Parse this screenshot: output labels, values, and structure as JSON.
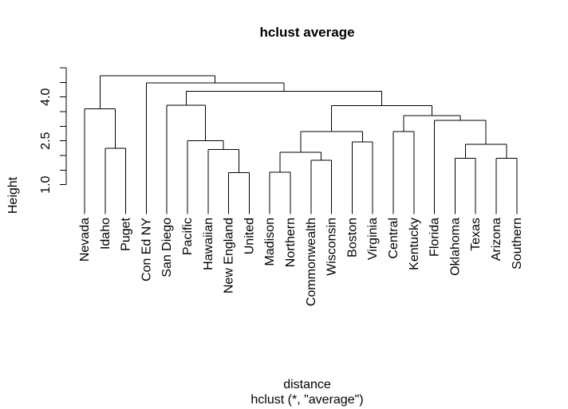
{
  "title": "hclust average",
  "y_axis": {
    "label": "Height",
    "tick_labels": [
      "1.0",
      "2.5",
      "4.0"
    ],
    "tick_values": [
      1.0,
      2.5,
      4.0
    ],
    "minor_tick_values": [
      1.0,
      1.5,
      2.0,
      2.5,
      3.0,
      3.5,
      4.0,
      4.5,
      5.0
    ]
  },
  "caption": {
    "xlabel": "distance",
    "subtitle": "hclust (*, \"average\")"
  },
  "chart_data": {
    "type": "dendrogram",
    "title": "hclust average",
    "ylabel": "Height",
    "xlabel": "distance",
    "subtitle": "hclust (*, \"average\")",
    "axis_range": [
      1.0,
      5.0
    ],
    "leaf_drop_height": 0.0,
    "leaf_order": [
      "Nevada",
      "Idaho",
      "Puget",
      "Con Ed NY",
      "San Diego",
      "Pacific",
      "Hawaiian",
      "New England",
      "United",
      "Madison",
      "Northern",
      "Commonwealth",
      "Wisconsin",
      "Boston",
      "Virginia",
      "Central",
      "Kentucky",
      "Florida",
      "Oklahoma",
      "Texas",
      "Arizona",
      "Southern"
    ],
    "merge_heights": [
      {
        "cluster": "New England + United",
        "height": 1.41
      },
      {
        "cluster": "Madison + Northern",
        "height": 1.43
      },
      {
        "cluster": "Commonwealth + Wisconsin",
        "height": 1.84
      },
      {
        "cluster": "Oklahoma + Texas",
        "height": 1.9
      },
      {
        "cluster": "Arizona + Southern",
        "height": 1.9
      },
      {
        "cluster": "(Madison,Northern) + (Commonwealth,Wisconsin)",
        "height": 2.11
      },
      {
        "cluster": "Hawaiian + (New England,United)",
        "height": 2.2
      },
      {
        "cluster": "Idaho + Puget",
        "height": 2.24
      },
      {
        "cluster": "(Oklahoma,Texas) + (Arizona,Southern)",
        "height": 2.38
      },
      {
        "cluster": "Boston + Virginia",
        "height": 2.47
      },
      {
        "cluster": "Pacific + (Hawaiian...)",
        "height": 2.5
      },
      {
        "cluster": "Central + Kentucky",
        "height": 2.82
      },
      {
        "cluster": "(Madison...Wisconsin) + (Boston,Virginia)",
        "height": 2.82
      },
      {
        "cluster": "Florida + (Oklahoma...Southern)",
        "height": 3.2
      },
      {
        "cluster": "(Central,Kentucky) + (Florida...)",
        "height": 3.36
      },
      {
        "cluster": "Nevada + (Idaho,Puget)",
        "height": 3.59
      },
      {
        "cluster": "(Madison...Virginia) + (Central...Southern)",
        "height": 3.71
      },
      {
        "cluster": "San Diego + (Pacific...)",
        "height": 3.72
      },
      {
        "cluster": "(San Diego...) + (Madison...Southern)",
        "height": 4.2
      },
      {
        "cluster": "Con Ed NY + rest",
        "height": 4.48
      },
      {
        "cluster": "root",
        "height": 4.73
      }
    ],
    "tree": {
      "h": 4.73,
      "c": [
        {
          "h": 3.59,
          "c": [
            {
              "leaf": "Nevada"
            },
            {
              "h": 2.24,
              "c": [
                {
                  "leaf": "Idaho"
                },
                {
                  "leaf": "Puget"
                }
              ]
            }
          ]
        },
        {
          "h": 4.48,
          "c": [
            {
              "leaf": "Con Ed NY"
            },
            {
              "h": 4.2,
              "c": [
                {
                  "h": 3.72,
                  "c": [
                    {
                      "leaf": "San Diego"
                    },
                    {
                      "h": 2.5,
                      "c": [
                        {
                          "leaf": "Pacific"
                        },
                        {
                          "h": 2.2,
                          "c": [
                            {
                              "leaf": "Hawaiian"
                            },
                            {
                              "h": 1.41,
                              "c": [
                                {
                                  "leaf": "New England"
                                },
                                {
                                  "leaf": "United"
                                }
                              ]
                            }
                          ]
                        }
                      ]
                    }
                  ]
                },
                {
                  "h": 3.71,
                  "c": [
                    {
                      "h": 2.82,
                      "c": [
                        {
                          "h": 2.11,
                          "c": [
                            {
                              "h": 1.43,
                              "c": [
                                {
                                  "leaf": "Madison"
                                },
                                {
                                  "leaf": "Northern"
                                }
                              ]
                            },
                            {
                              "h": 1.84,
                              "c": [
                                {
                                  "leaf": "Commonwealth"
                                },
                                {
                                  "leaf": "Wisconsin"
                                }
                              ]
                            }
                          ]
                        },
                        {
                          "h": 2.47,
                          "c": [
                            {
                              "leaf": "Boston"
                            },
                            {
                              "leaf": "Virginia"
                            }
                          ]
                        }
                      ]
                    },
                    {
                      "h": 3.36,
                      "c": [
                        {
                          "h": 2.82,
                          "c": [
                            {
                              "leaf": "Central"
                            },
                            {
                              "leaf": "Kentucky"
                            }
                          ]
                        },
                        {
                          "h": 3.2,
                          "c": [
                            {
                              "leaf": "Florida"
                            },
                            {
                              "h": 2.38,
                              "c": [
                                {
                                  "h": 1.9,
                                  "c": [
                                    {
                                      "leaf": "Oklahoma"
                                    },
                                    {
                                      "leaf": "Texas"
                                    }
                                  ]
                                },
                                {
                                  "h": 1.9,
                                  "c": [
                                    {
                                      "leaf": "Arizona"
                                    },
                                    {
                                      "leaf": "Southern"
                                    }
                                  ]
                                }
                              ]
                            }
                          ]
                        }
                      ]
                    }
                  ]
                }
              ]
            }
          ]
        }
      ]
    }
  }
}
